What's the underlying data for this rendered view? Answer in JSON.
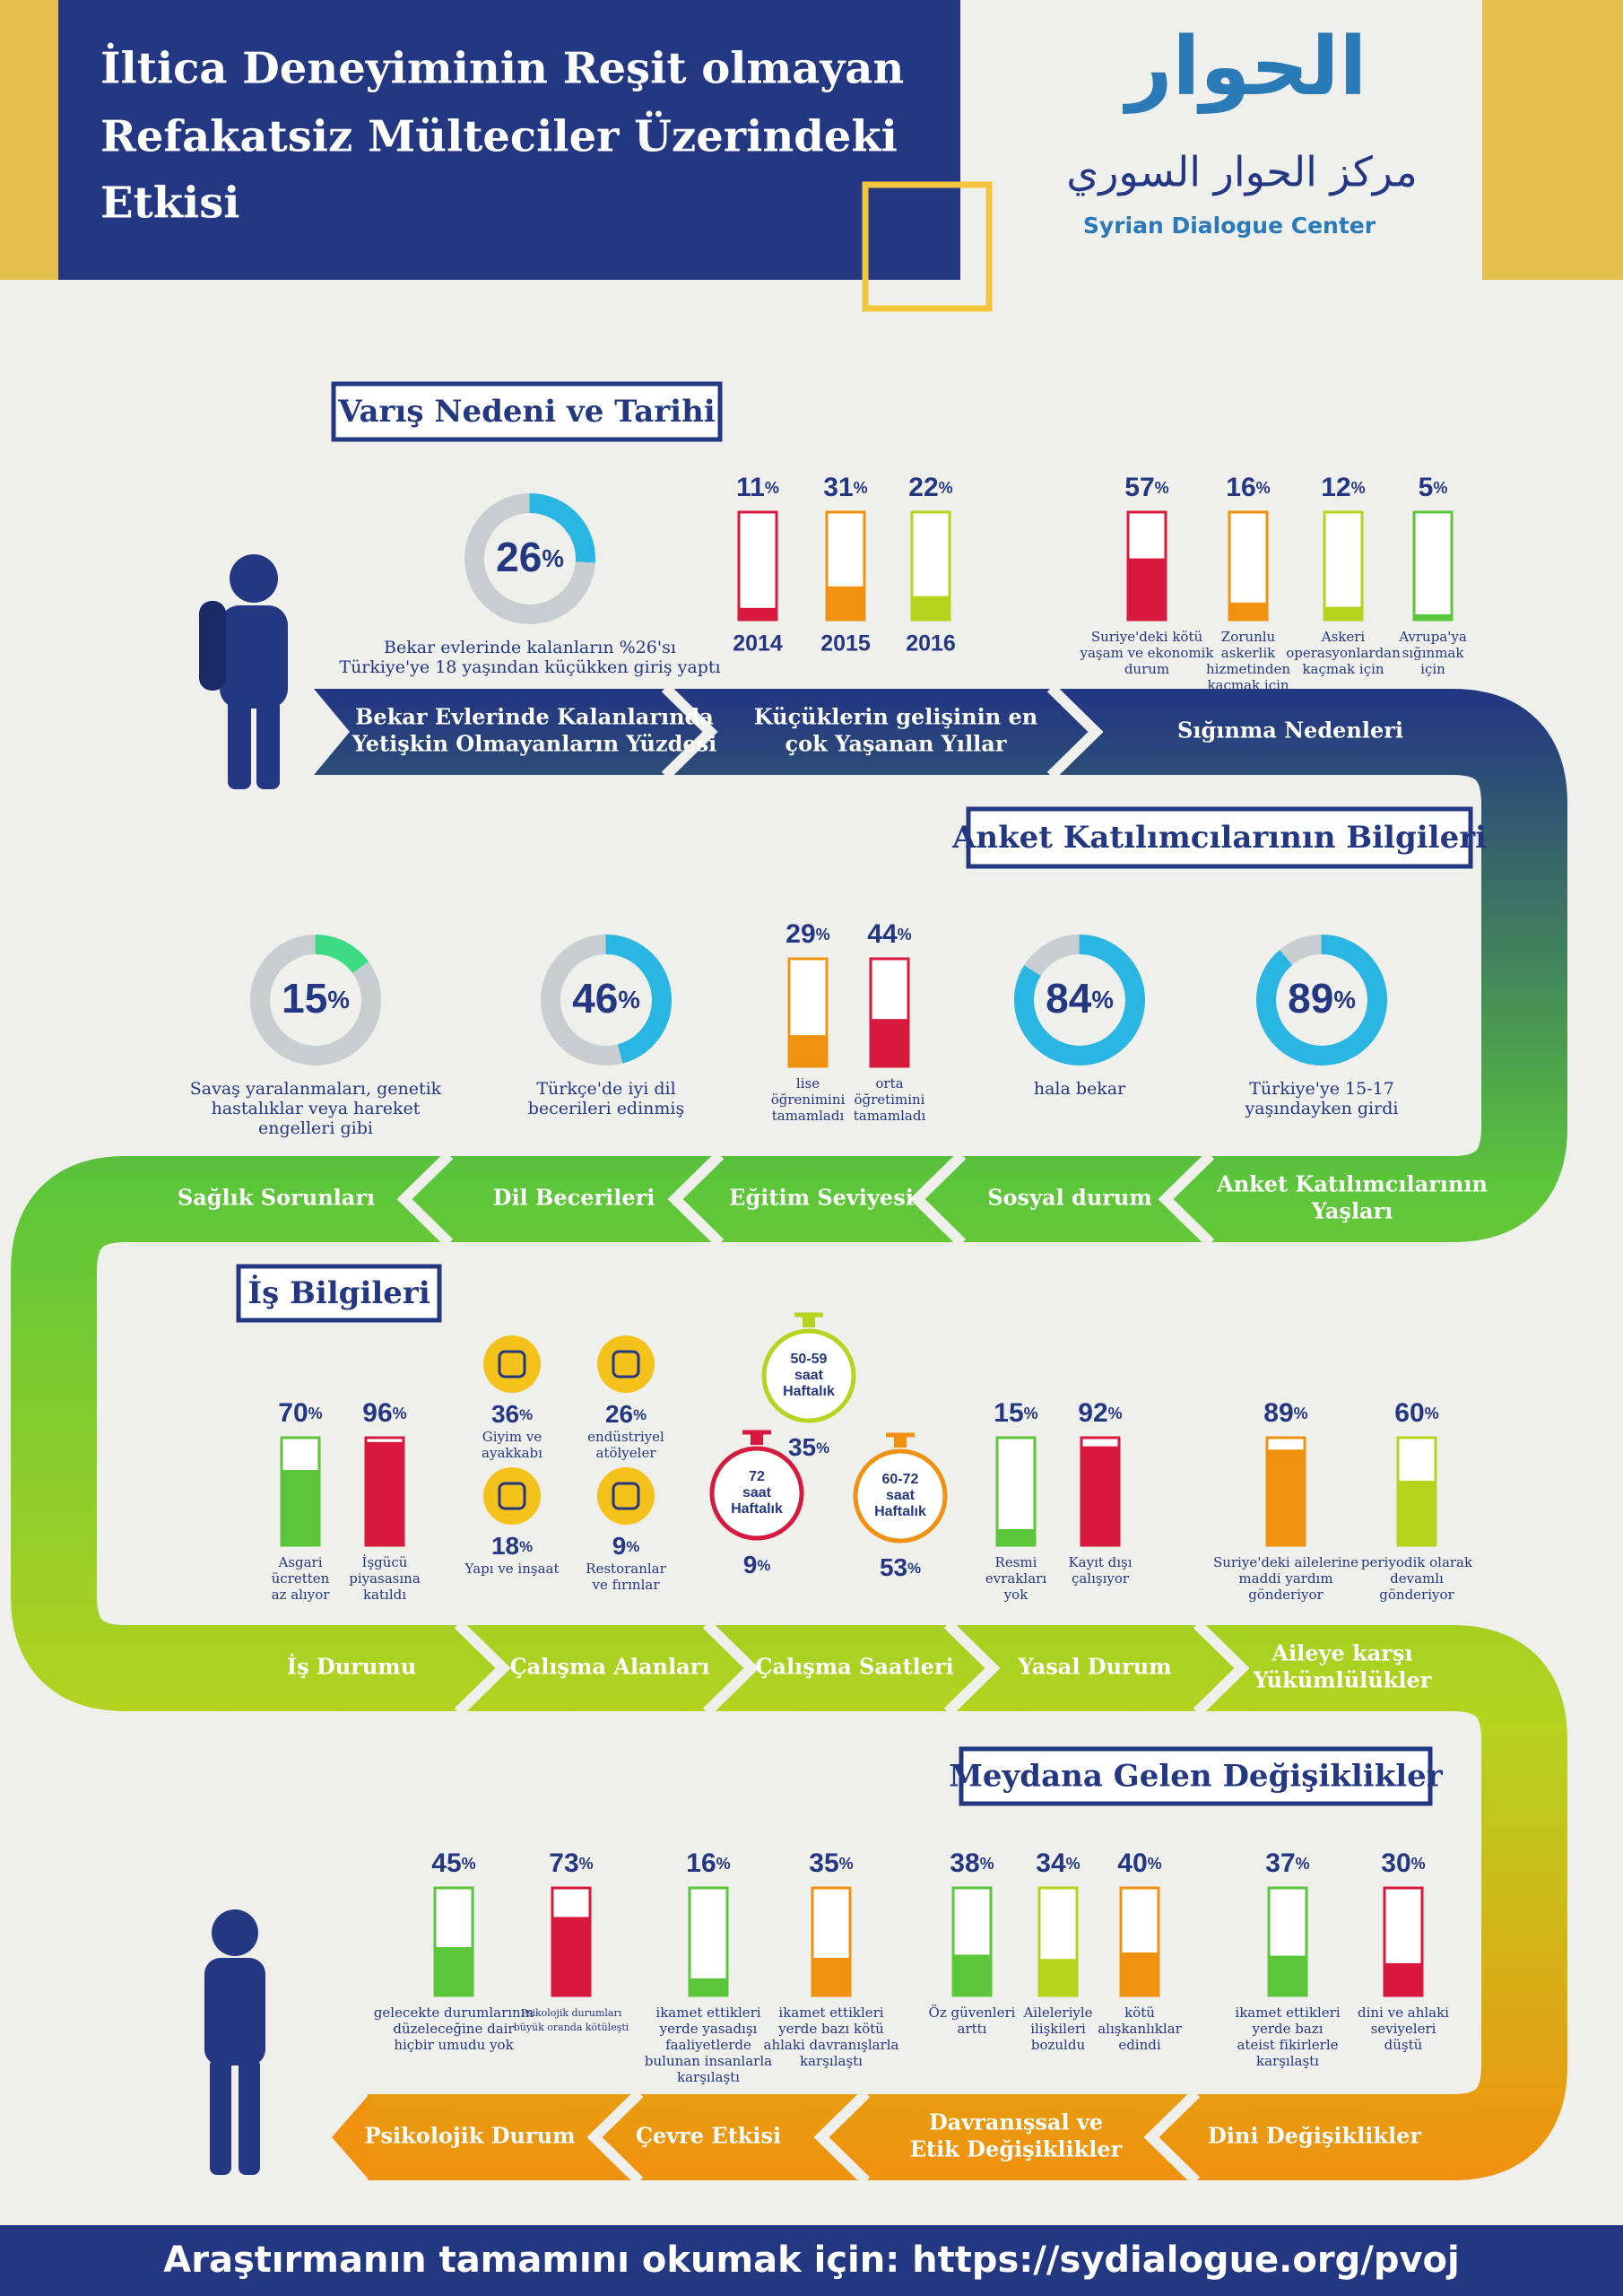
{
  "header": {
    "title_lines": [
      "İltica Deneyiminin Reşit olmayan",
      "Refakatsiz Mülteciler Üzerindeki",
      "Etkisi"
    ],
    "logo_word": "الحوار",
    "logo_arabic": "مركز الحوار السوري",
    "logo_english": "Syrian Dialogue Center"
  },
  "sections": [
    {
      "title": "Varış Nedeni ve Tarihi",
      "stages": [
        [
          "Bekar Evlerinde Kalanlarında",
          "Yetişkin Olmayanların Yüzdesi"
        ],
        [
          "Küçüklerin gelişinin en",
          "çok Yaşanan Yıllar"
        ],
        [
          "Sığınma Nedenleri"
        ]
      ],
      "items": [
        {
          "kind": "donut",
          "value": 26,
          "label": "26%",
          "color": "#29b6e3",
          "caption_lines": [
            "Bekar evlerinde kalanların %26'sı",
            "Türkiye'ye 18 yaşından küçükken giriş yaptı"
          ]
        },
        {
          "kind": "bar",
          "value": 11,
          "label": "11%",
          "color": "#d7193d",
          "year": "2014"
        },
        {
          "kind": "bar",
          "value": 31,
          "label": "31%",
          "color": "#f0920f",
          "year": "2015"
        },
        {
          "kind": "bar",
          "value": 22,
          "label": "22%",
          "color": "#b6d31e",
          "year": "2016"
        },
        {
          "kind": "bar",
          "value": 57,
          "label": "57%",
          "color": "#d7193d",
          "caption_lines": [
            "Suriye'deki kötü",
            "yaşam ve ekonomik",
            "durum"
          ]
        },
        {
          "kind": "bar",
          "value": 16,
          "label": "16%",
          "color": "#f0920f",
          "caption_lines": [
            "Zorunlu",
            "askerlik",
            "hizmetinden",
            "kaçmak için"
          ]
        },
        {
          "kind": "bar",
          "value": 12,
          "label": "12%",
          "color": "#b6d31e",
          "caption_lines": [
            "Askeri",
            "operasyonlardan",
            "kaçmak için"
          ]
        },
        {
          "kind": "bar",
          "value": 5,
          "label": "5%",
          "color": "#5cc63a",
          "caption_lines": [
            "Avrupa'ya",
            "sığınmak",
            "için"
          ]
        }
      ]
    },
    {
      "title": "Anket Katılımcılarının Bilgileri",
      "stages": [
        [
          "Sağlık Sorunları"
        ],
        [
          "Dil Becerileri"
        ],
        [
          "Eğitim Seviyesi"
        ],
        [
          "Sosyal durum"
        ],
        [
          "Anket Katılımcılarının",
          "Yaşları"
        ]
      ],
      "items": [
        {
          "kind": "donut",
          "value": 15,
          "label": "15%",
          "color": "#3ddc84",
          "caption_lines": [
            "Savaş yaralanmaları, genetik",
            "hastalıklar veya hareket",
            "engelleri gibi"
          ]
        },
        {
          "kind": "donut",
          "value": 46,
          "label": "46%",
          "color": "#29b6e3",
          "caption_lines": [
            "Türkçe'de iyi dil",
            "becerileri edinmiş"
          ]
        },
        {
          "kind": "bar",
          "value": 29,
          "label": "29%",
          "color": "#f0920f",
          "caption_lines": [
            "lise",
            "öğrenimini",
            "tamamladı"
          ]
        },
        {
          "kind": "bar",
          "value": 44,
          "label": "44%",
          "color": "#d7193d",
          "caption_lines": [
            "orta",
            "öğretimini",
            "tamamladı"
          ]
        },
        {
          "kind": "donut",
          "value": 84,
          "label": "84%",
          "color": "#29b6e3",
          "caption_lines": [
            "hala bekar"
          ]
        },
        {
          "kind": "donut",
          "value": 89,
          "label": "89%",
          "color": "#29b6e3",
          "caption_lines": [
            "Türkiye'ye 15-17",
            "yaşındayken girdi"
          ]
        }
      ]
    },
    {
      "title": "İş Bilgileri",
      "stages": [
        [
          "İş Durumu"
        ],
        [
          "Çalışma Alanları"
        ],
        [
          "Çalışma Saatleri"
        ],
        [
          "Yasal Durum"
        ],
        [
          "Aileye karşı",
          "Yükümlülükler"
        ]
      ],
      "items": [
        {
          "kind": "bar",
          "value": 70,
          "label": "70%",
          "color": "#5cc63a",
          "caption_lines": [
            "Asgari",
            "ücretten",
            "az alıyor"
          ]
        },
        {
          "kind": "bar",
          "value": 96,
          "label": "96%",
          "color": "#d7193d",
          "caption_lines": [
            "İşgücü",
            "piyasasına",
            "katıldı"
          ]
        },
        {
          "kind": "icon",
          "label": "36%",
          "caption_lines": [
            "Giyim ve",
            "ayakkabı"
          ]
        },
        {
          "kind": "icon",
          "label": "26%",
          "caption_lines": [
            "endüstriyel",
            "atölyeler"
          ]
        },
        {
          "kind": "icon",
          "label": "18%",
          "caption_lines": [
            "Yapı ve inşaat"
          ]
        },
        {
          "kind": "icon",
          "label": "9%",
          "caption_lines": [
            "Restoranlar",
            "ve fırınlar"
          ]
        },
        {
          "kind": "watch",
          "label": "35%",
          "color": "#b6d31e",
          "face_lines": [
            "50-59",
            "saat",
            "Haftalık"
          ]
        },
        {
          "kind": "watch",
          "label": "9%",
          "color": "#d7193d",
          "face_lines": [
            "72",
            "saat",
            "Haftalık"
          ]
        },
        {
          "kind": "watch",
          "label": "53%",
          "color": "#f0920f",
          "face_lines": [
            "60-72",
            "saat",
            "Haftalık"
          ]
        },
        {
          "kind": "bar",
          "value": 15,
          "label": "15%",
          "color": "#5cc63a",
          "caption_lines": [
            "Resmi",
            "evrakları",
            "yok"
          ]
        },
        {
          "kind": "bar",
          "value": 92,
          "label": "92%",
          "color": "#d7193d",
          "caption_lines": [
            "Kayıt dışı",
            "çalışıyor"
          ]
        },
        {
          "kind": "bar",
          "value": 89,
          "label": "89%",
          "color": "#f0920f",
          "caption_lines": [
            "Suriye'deki ailelerine",
            "maddi yardım",
            "gönderiyor"
          ]
        },
        {
          "kind": "bar",
          "value": 60,
          "label": "60%",
          "color": "#b6d31e",
          "caption_lines": [
            "periyodik olarak",
            "devamlı",
            "gönderiyor"
          ]
        }
      ]
    },
    {
      "title": "Meydana Gelen Değişiklikler",
      "stages": [
        [
          "Psikolojik Durum"
        ],
        [
          "Çevre Etkisi"
        ],
        [
          "Davranışsal ve",
          "Etik Değişiklikler"
        ],
        [
          "Dini Değişiklikler"
        ]
      ],
      "items": [
        {
          "kind": "bar",
          "value": 45,
          "label": "45%",
          "color": "#5cc63a",
          "caption_lines": [
            "gelecekte durumlarının",
            "düzeleceğine dair",
            "hiçbir umudu yok"
          ]
        },
        {
          "kind": "bar",
          "value": 73,
          "label": "73%",
          "color": "#d7193d",
          "caption_lines": [
            "Psikolojik durumları",
            "büyük oranda kötüleşti"
          ]
        },
        {
          "kind": "bar",
          "value": 16,
          "label": "16%",
          "color": "#5cc63a",
          "caption_lines": [
            "ikamet ettikleri",
            "yerde yasadışı",
            "faaliyetlerde",
            "bulunan insanlarla",
            "karşılaştı"
          ]
        },
        {
          "kind": "bar",
          "value": 35,
          "label": "35%",
          "color": "#f0920f",
          "caption_lines": [
            "ikamet ettikleri",
            "yerde bazı kötü",
            "ahlaki davranışlarla",
            "karşılaştı"
          ]
        },
        {
          "kind": "bar",
          "value": 38,
          "label": "38%",
          "color": "#5cc63a",
          "caption_lines": [
            "Öz güvenleri",
            "arttı"
          ]
        },
        {
          "kind": "bar",
          "value": 34,
          "label": "34%",
          "color": "#b6d31e",
          "caption_lines": [
            "Aileleriyle",
            "ilişkileri",
            "bozuldu"
          ]
        },
        {
          "kind": "bar",
          "value": 40,
          "label": "40%",
          "color": "#f0920f",
          "caption_lines": [
            "kötü",
            "alışkanlıklar",
            "edindi"
          ]
        },
        {
          "kind": "bar",
          "value": 37,
          "label": "37%",
          "color": "#5cc63a",
          "caption_lines": [
            "ikamet ettikleri",
            "yerde bazı",
            "ateist fikirlerle",
            "karşılaştı"
          ]
        },
        {
          "kind": "bar",
          "value": 30,
          "label": "30%",
          "color": "#d7193d",
          "caption_lines": [
            "dini ve ahlaki",
            "seviyeleri",
            "düştü"
          ]
        }
      ]
    }
  ],
  "footer": {
    "text": "Araştırmanın tamamını okumak için:  https://sydialogue.org/pvoj"
  }
}
